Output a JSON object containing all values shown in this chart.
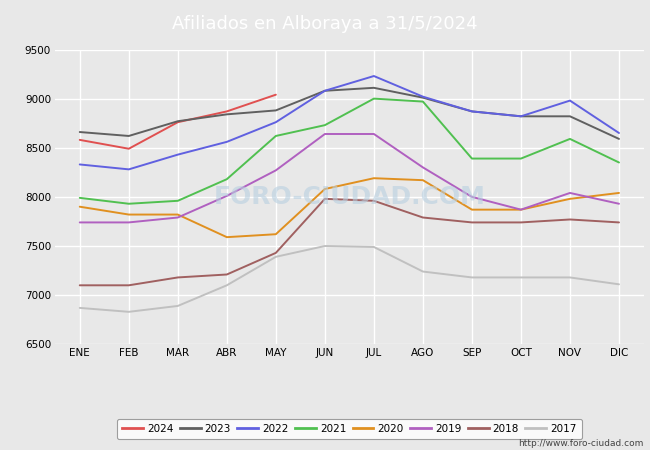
{
  "title": "Afiliados en Alboraya a 31/5/2024",
  "title_bg_color": "#4d8fcc",
  "title_text_color": "white",
  "months": [
    "ENE",
    "FEB",
    "MAR",
    "ABR",
    "MAY",
    "JUN",
    "JUL",
    "AGO",
    "SEP",
    "OCT",
    "NOV",
    "DIC"
  ],
  "ylim": [
    6500,
    9500
  ],
  "yticks": [
    6500,
    7000,
    7500,
    8000,
    8500,
    9000,
    9500
  ],
  "series": {
    "2024": {
      "color": "#e05050",
      "data": [
        8580,
        8490,
        8760,
        8870,
        9040,
        null,
        null,
        null,
        null,
        null,
        null,
        null
      ]
    },
    "2023": {
      "color": "#606060",
      "data": [
        8660,
        8620,
        8770,
        8840,
        8880,
        9080,
        9110,
        9010,
        8870,
        8820,
        8820,
        8590
      ]
    },
    "2022": {
      "color": "#6060e0",
      "data": [
        8330,
        8280,
        8430,
        8560,
        8760,
        9080,
        9230,
        9020,
        8870,
        8820,
        8980,
        8650
      ]
    },
    "2021": {
      "color": "#50c050",
      "data": [
        7990,
        7930,
        7960,
        8180,
        8620,
        8730,
        9000,
        8970,
        8390,
        8390,
        8590,
        8350
      ]
    },
    "2020": {
      "color": "#e09020",
      "data": [
        7900,
        7820,
        7820,
        7590,
        7620,
        8080,
        8190,
        8170,
        7870,
        7870,
        7980,
        8040
      ]
    },
    "2019": {
      "color": "#b060c0",
      "data": [
        7740,
        7740,
        7790,
        8010,
        8270,
        8640,
        8640,
        8300,
        8000,
        7870,
        8040,
        7930
      ]
    },
    "2018": {
      "color": "#a06060",
      "data": [
        7100,
        7100,
        7180,
        7210,
        7430,
        7980,
        7960,
        7790,
        7740,
        7740,
        7770,
        7740
      ]
    },
    "2017": {
      "color": "#c0c0c0",
      "data": [
        6870,
        6830,
        6890,
        7100,
        7390,
        7500,
        7490,
        7240,
        7180,
        7180,
        7180,
        7110
      ]
    }
  },
  "legend_order": [
    "2024",
    "2023",
    "2022",
    "2021",
    "2020",
    "2019",
    "2018",
    "2017"
  ],
  "watermark": "FORO-CIUDAD.COM",
  "footer_url": "http://www.foro-ciudad.com",
  "bg_color": "#e8e8e8",
  "plot_bg_color": "#e8e8e8",
  "grid_color": "white"
}
